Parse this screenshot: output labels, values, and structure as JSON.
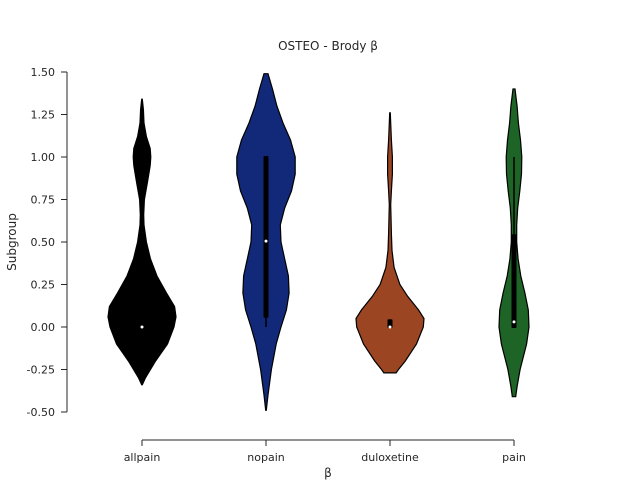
{
  "chart_data": {
    "type": "violin",
    "title": "OSTEO - Brody β",
    "xlabel": "β",
    "ylabel": "Subgroup",
    "ylim": [
      -0.5,
      1.5
    ],
    "yticks": [
      "-0.50",
      "-0.25",
      "0.00",
      "0.25",
      "0.50",
      "0.75",
      "1.00",
      "1.25",
      "1.50"
    ],
    "categories": [
      "allpain",
      "nopain",
      "duloxetine",
      "pain"
    ],
    "grid": false,
    "series": [
      {
        "category": "allpain",
        "color": "#000000",
        "median": 0.0,
        "q1": 0.0,
        "q3": 0.0,
        "whisker_low": 0.0,
        "whisker_high": 0.0,
        "density": [
          [
            -0.34,
            0.01
          ],
          [
            -0.3,
            0.1
          ],
          [
            -0.2,
            0.4
          ],
          [
            -0.1,
            0.75
          ],
          [
            0.0,
            0.94
          ],
          [
            0.06,
            1.0
          ],
          [
            0.12,
            0.96
          ],
          [
            0.2,
            0.72
          ],
          [
            0.3,
            0.44
          ],
          [
            0.4,
            0.25
          ],
          [
            0.5,
            0.13
          ],
          [
            0.6,
            0.06
          ],
          [
            0.66,
            0.05
          ],
          [
            0.75,
            0.07
          ],
          [
            0.85,
            0.16
          ],
          [
            0.95,
            0.24
          ],
          [
            1.0,
            0.26
          ],
          [
            1.05,
            0.24
          ],
          [
            1.12,
            0.13
          ],
          [
            1.2,
            0.06
          ],
          [
            1.28,
            0.04
          ],
          [
            1.34,
            0.01
          ]
        ]
      },
      {
        "category": "nopain",
        "color": "#12297a",
        "median": 0.505,
        "q1": 0.06,
        "q3": 1.0,
        "whisker_low": 0.0,
        "whisker_high": 1.0,
        "density": [
          [
            -0.49,
            0.01
          ],
          [
            -0.4,
            0.06
          ],
          [
            -0.25,
            0.16
          ],
          [
            -0.1,
            0.3
          ],
          [
            0.0,
            0.44
          ],
          [
            0.1,
            0.6
          ],
          [
            0.2,
            0.68
          ],
          [
            0.3,
            0.66
          ],
          [
            0.4,
            0.55
          ],
          [
            0.5,
            0.44
          ],
          [
            0.6,
            0.42
          ],
          [
            0.7,
            0.55
          ],
          [
            0.8,
            0.75
          ],
          [
            0.9,
            0.86
          ],
          [
            1.0,
            0.86
          ],
          [
            1.1,
            0.72
          ],
          [
            1.2,
            0.5
          ],
          [
            1.3,
            0.32
          ],
          [
            1.4,
            0.19
          ],
          [
            1.49,
            0.06
          ]
        ]
      },
      {
        "category": "duloxetine",
        "color": "#9b4522",
        "median": 0.0,
        "q1": 0.0,
        "q3": 0.04,
        "whisker_low": 0.0,
        "whisker_high": 0.04,
        "density": [
          [
            -0.27,
            0.18
          ],
          [
            -0.25,
            0.25
          ],
          [
            -0.2,
            0.45
          ],
          [
            -0.1,
            0.78
          ],
          [
            0.0,
            0.98
          ],
          [
            0.05,
            1.0
          ],
          [
            0.1,
            0.84
          ],
          [
            0.18,
            0.52
          ],
          [
            0.25,
            0.29
          ],
          [
            0.35,
            0.12
          ],
          [
            0.45,
            0.06
          ],
          [
            0.55,
            0.04
          ],
          [
            0.65,
            0.03
          ],
          [
            0.72,
            0.02
          ],
          [
            0.8,
            0.04
          ],
          [
            0.9,
            0.07
          ],
          [
            1.0,
            0.07
          ],
          [
            1.1,
            0.04
          ],
          [
            1.2,
            0.02
          ],
          [
            1.26,
            0.01
          ]
        ]
      },
      {
        "category": "pain",
        "color": "#1e6427",
        "median": 0.03,
        "q1": 0.0,
        "q3": 0.54,
        "whisker_low": 0.0,
        "whisker_high": 1.0,
        "density": [
          [
            -0.41,
            0.05
          ],
          [
            -0.35,
            0.09
          ],
          [
            -0.25,
            0.18
          ],
          [
            -0.1,
            0.37
          ],
          [
            0.0,
            0.44
          ],
          [
            0.1,
            0.42
          ],
          [
            0.2,
            0.32
          ],
          [
            0.3,
            0.2
          ],
          [
            0.4,
            0.12
          ],
          [
            0.5,
            0.08
          ],
          [
            0.6,
            0.08
          ],
          [
            0.7,
            0.11
          ],
          [
            0.8,
            0.17
          ],
          [
            0.9,
            0.22
          ],
          [
            1.0,
            0.23
          ],
          [
            1.1,
            0.19
          ],
          [
            1.2,
            0.13
          ],
          [
            1.3,
            0.09
          ],
          [
            1.4,
            0.03
          ]
        ]
      }
    ]
  }
}
